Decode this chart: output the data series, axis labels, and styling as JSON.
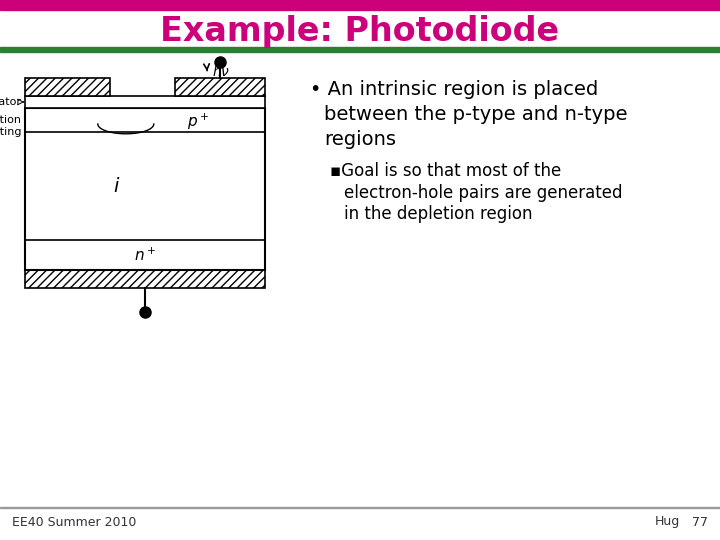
{
  "title": "Example: Photodiode",
  "title_color": "#CC007A",
  "title_fontsize": 24,
  "bg_color": "#FFFFFF",
  "top_bar_color": "#CC007A",
  "green_bar_color": "#2E7D32",
  "bullet_text_1a": "• An intrinsic region is placed",
  "bullet_text_1b": "    between the p-type and n-type",
  "bullet_text_1c": "    regions",
  "bullet_text_2a": "▪Goal is so that most of the",
  "bullet_text_2b": "   electron-hole pairs are generated",
  "bullet_text_2c": "   in the depletion region",
  "footer_left": "EE40 Summer 2010",
  "footer_right": "Hug",
  "footer_page": "77",
  "footer_fontsize": 9,
  "text_fontsize": 14,
  "sub_fontsize": 12
}
